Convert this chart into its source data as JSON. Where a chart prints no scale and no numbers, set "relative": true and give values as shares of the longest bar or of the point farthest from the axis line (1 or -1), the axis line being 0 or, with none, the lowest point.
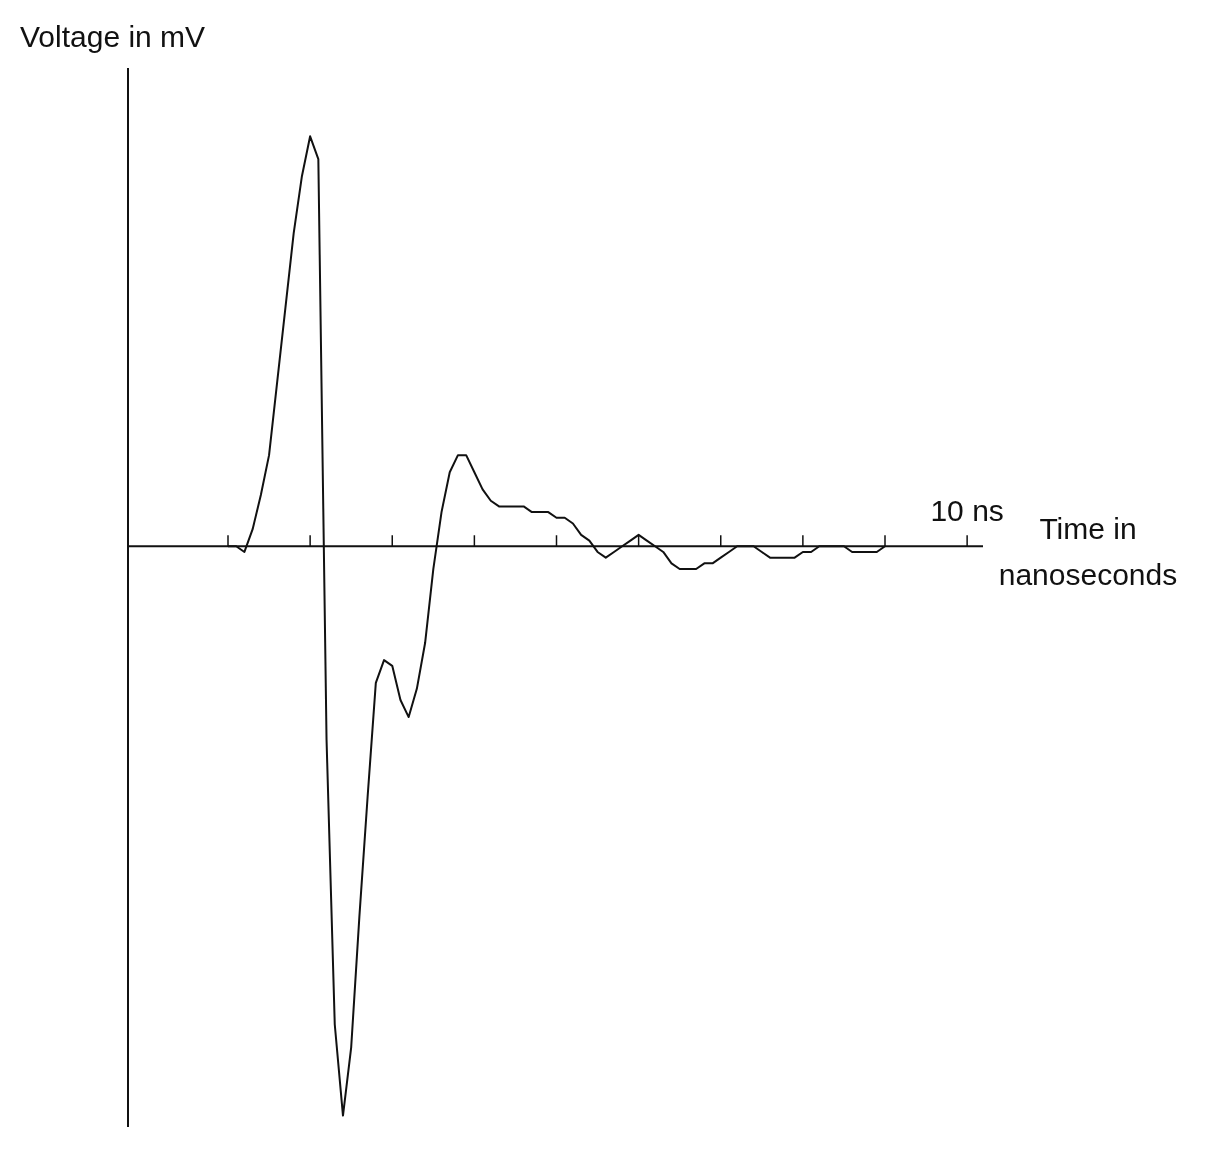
{
  "chart_data": {
    "type": "line",
    "relative": true,
    "xlabel": "Time in nanoseconds",
    "ylabel": "Voltage in mV",
    "annotations": [
      "10 ns"
    ],
    "legend": false,
    "grid": false,
    "marker": "none",
    "line_style": "solid",
    "categories": [
      null,
      null,
      null,
      null,
      null,
      null,
      null,
      null,
      null,
      null,
      null,
      null,
      null,
      null,
      null,
      null,
      null,
      null,
      null,
      null,
      null,
      null,
      null,
      null,
      null,
      null,
      null,
      null,
      null,
      null,
      null,
      null,
      null,
      null,
      null,
      null,
      null,
      null,
      null,
      null,
      null,
      null,
      null,
      null,
      null,
      null,
      null,
      null,
      null,
      null,
      null,
      null,
      null,
      null,
      null,
      null,
      null,
      null,
      null,
      null,
      null,
      null,
      null,
      null,
      null,
      null,
      null,
      null,
      null,
      null,
      null,
      null,
      null,
      null,
      null,
      null,
      null,
      null,
      null,
      null,
      null
    ],
    "series": [
      {
        "color": "#111111",
        "values": [
          0,
          0,
          -0.01,
          0.03,
          0.09,
          0.16,
          0.29,
          0.42,
          0.55,
          0.65,
          0.72,
          0.68,
          -0.34,
          -0.84,
          -1,
          -0.88,
          -0.65,
          -0.44,
          -0.24,
          -0.2,
          -0.21,
          -0.27,
          -0.3,
          -0.25,
          -0.17,
          -0.04,
          0.06,
          0.13,
          0.16,
          0.16,
          0.13,
          0.1,
          0.08,
          0.07,
          0.07,
          0.07,
          0.07,
          0.06,
          0.06,
          0.06,
          0.05,
          0.05,
          0.04,
          0.02,
          0.01,
          -0.01,
          -0.02,
          -0.01,
          0.0,
          0.01,
          0.02,
          0.01,
          0.0,
          -0.01,
          -0.03,
          -0.04,
          -0.04,
          -0.04,
          -0.03,
          -0.03,
          -0.02,
          -0.01,
          0.0,
          0.0,
          0.0,
          -0.01,
          -0.02,
          -0.02,
          -0.02,
          -0.02,
          -0.01,
          -0.01,
          0.0,
          0.0,
          0.0,
          0.0,
          -0.01,
          -0.01,
          -0.01,
          -0.01,
          0.0
        ]
      }
    ]
  }
}
